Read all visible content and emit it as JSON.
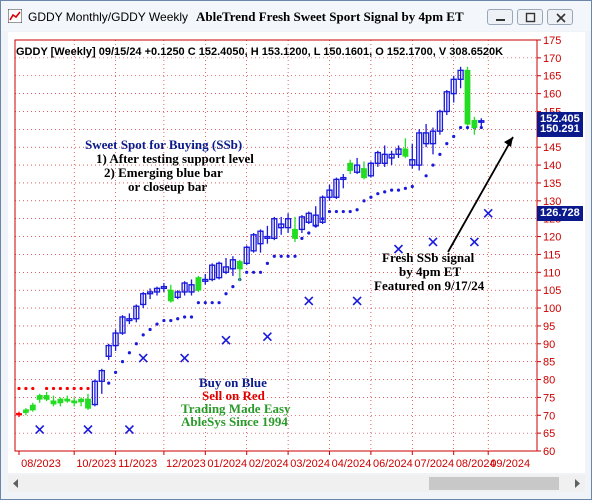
{
  "window": {
    "title": "GDDY Monthly/GDDY Weekly",
    "chart_title": "AbleTrend Fresh Sweet Sport Signal by 4pm ET",
    "controls": [
      "minimize-icon",
      "maximize-icon",
      "close-icon"
    ]
  },
  "header": {
    "text": "GDDY [Weekly] 09/15/24 +0.1250 C 152.4050, H 153.1200, L 150.1601, O 152.1700, V 308.6520K"
  },
  "annotations": {
    "sweet_spot_title": "Sweet Spot for Buying (SSb)",
    "sweet_spot_1": "1) After testing support level",
    "sweet_spot_2": "2) Emerging blue bar",
    "sweet_spot_3": "or closeup bar",
    "fresh_1": "Fresh SSb signal",
    "fresh_2": "by 4pm ET",
    "fresh_3": "Featured on 9/17/24",
    "legend_buy": "Buy on Blue",
    "legend_sell": "Sell on Red",
    "legend_tme": "Trading Made Easy",
    "legend_since": "AbleSys Since 1994"
  },
  "price_tags": {
    "current": "150.291",
    "current_back": "152.405",
    "stop": "126.728"
  },
  "colors": {
    "up_bar": "#1a1adc",
    "neutral_bar": "#22dd22",
    "stop_dots_up": "#1a1adc",
    "stop_dots_down": "#ff0000",
    "axis": "#ff0000",
    "price_tag": "#0a1a8c",
    "note_blue": "#0a1a8c",
    "note_red": "#e00000",
    "note_green": "#2a9a2a"
  },
  "chart_data": {
    "type": "ohlc",
    "x_labels": [
      "08/2023",
      "10/2023",
      "11/2023",
      "12/2023",
      "01/2024",
      "02/2024",
      "03/2024",
      "04/2024",
      "06/2024",
      "07/2024",
      "08/2024",
      "09/2024"
    ],
    "y_ticks": [
      60,
      65,
      70,
      75,
      80,
      85,
      90,
      95,
      100,
      105,
      110,
      115,
      120,
      125,
      130,
      135,
      140,
      145,
      150,
      155,
      160,
      165,
      170,
      175
    ],
    "ylim": [
      60,
      175
    ],
    "grid": true,
    "bars": [
      {
        "o": 70.5,
        "h": 71.0,
        "l": 69.5,
        "c": 70.2,
        "col": "r"
      },
      {
        "o": 70.8,
        "h": 72.0,
        "l": 70.0,
        "c": 71.5,
        "col": "g"
      },
      {
        "o": 71.5,
        "h": 73.5,
        "l": 71.0,
        "c": 72.8,
        "col": "g"
      },
      {
        "o": 74.5,
        "h": 76.0,
        "l": 73.5,
        "c": 75.5,
        "col": "g"
      },
      {
        "o": 75.5,
        "h": 76.5,
        "l": 74.0,
        "c": 74.5,
        "col": "g"
      },
      {
        "o": 74.0,
        "h": 75.5,
        "l": 72.5,
        "c": 73.2,
        "col": "g"
      },
      {
        "o": 73.5,
        "h": 75.0,
        "l": 72.5,
        "c": 74.5,
        "col": "g"
      },
      {
        "o": 74.5,
        "h": 75.5,
        "l": 73.5,
        "c": 74.0,
        "col": "g"
      },
      {
        "o": 74.0,
        "h": 75.0,
        "l": 72.5,
        "c": 73.5,
        "col": "g"
      },
      {
        "o": 73.8,
        "h": 75.0,
        "l": 72.5,
        "c": 74.5,
        "col": "g"
      },
      {
        "o": 74.5,
        "h": 76.0,
        "l": 71.5,
        "c": 72.0,
        "col": "g"
      },
      {
        "o": 73.0,
        "h": 80.0,
        "l": 72.5,
        "c": 79.5,
        "col": "b"
      },
      {
        "o": 79.5,
        "h": 83.0,
        "l": 76.0,
        "c": 82.5,
        "col": "b"
      },
      {
        "o": 86.5,
        "h": 90.0,
        "l": 85.5,
        "c": 89.5,
        "col": "b"
      },
      {
        "o": 89.5,
        "h": 94.0,
        "l": 88.0,
        "c": 93.0,
        "col": "b"
      },
      {
        "o": 93.0,
        "h": 98.0,
        "l": 92.5,
        "c": 97.5,
        "col": "b"
      },
      {
        "o": 96.5,
        "h": 98.5,
        "l": 95.5,
        "c": 97.0,
        "col": "b"
      },
      {
        "o": 97.0,
        "h": 101.0,
        "l": 96.0,
        "c": 100.5,
        "col": "b"
      },
      {
        "o": 101.0,
        "h": 104.5,
        "l": 100.0,
        "c": 104.0,
        "col": "b"
      },
      {
        "o": 104.0,
        "h": 105.5,
        "l": 102.5,
        "c": 104.5,
        "col": "b"
      },
      {
        "o": 104.5,
        "h": 106.0,
        "l": 103.5,
        "c": 105.5,
        "col": "b"
      },
      {
        "o": 105.5,
        "h": 107.0,
        "l": 104.5,
        "c": 106.0,
        "col": "b"
      },
      {
        "o": 105.0,
        "h": 106.5,
        "l": 101.5,
        "c": 102.0,
        "col": "g"
      },
      {
        "o": 103.0,
        "h": 105.0,
        "l": 102.5,
        "c": 104.5,
        "col": "b"
      },
      {
        "o": 104.5,
        "h": 107.5,
        "l": 103.5,
        "c": 107.0,
        "col": "b"
      },
      {
        "o": 106.5,
        "h": 108.0,
        "l": 103.5,
        "c": 104.5,
        "col": "b"
      },
      {
        "o": 105.0,
        "h": 109.0,
        "l": 104.5,
        "c": 108.5,
        "col": "g"
      },
      {
        "o": 108.0,
        "h": 109.5,
        "l": 106.5,
        "c": 107.5,
        "col": "b"
      },
      {
        "o": 108.0,
        "h": 112.5,
        "l": 107.5,
        "c": 112.0,
        "col": "b"
      },
      {
        "o": 108.5,
        "h": 113.0,
        "l": 108.0,
        "c": 112.5,
        "col": "b"
      },
      {
        "o": 110.0,
        "h": 114.0,
        "l": 109.5,
        "c": 111.5,
        "col": "b"
      },
      {
        "o": 111.0,
        "h": 114.5,
        "l": 109.0,
        "c": 113.5,
        "col": "b"
      },
      {
        "o": 113.0,
        "h": 113.5,
        "l": 107.5,
        "c": 111.0,
        "col": "g"
      },
      {
        "o": 112.5,
        "h": 117.5,
        "l": 112.0,
        "c": 117.0,
        "col": "b"
      },
      {
        "o": 116.0,
        "h": 121.0,
        "l": 115.5,
        "c": 120.5,
        "col": "b"
      },
      {
        "o": 118.0,
        "h": 122.0,
        "l": 115.5,
        "c": 121.5,
        "col": "b"
      },
      {
        "o": 120.0,
        "h": 123.0,
        "l": 118.0,
        "c": 119.5,
        "col": "b"
      },
      {
        "o": 119.5,
        "h": 125.5,
        "l": 119.0,
        "c": 125.0,
        "col": "b"
      },
      {
        "o": 122.5,
        "h": 125.5,
        "l": 120.5,
        "c": 123.5,
        "col": "b"
      },
      {
        "o": 125.0,
        "h": 126.5,
        "l": 121.0,
        "c": 122.5,
        "col": "b"
      },
      {
        "o": 122.0,
        "h": 125.5,
        "l": 118.5,
        "c": 119.5,
        "col": "g"
      },
      {
        "o": 122.0,
        "h": 126.0,
        "l": 121.0,
        "c": 125.5,
        "col": "b"
      },
      {
        "o": 124.0,
        "h": 127.0,
        "l": 123.5,
        "c": 126.5,
        "col": "b"
      },
      {
        "o": 126.0,
        "h": 128.5,
        "l": 122.5,
        "c": 123.0,
        "col": "b"
      },
      {
        "o": 124.0,
        "h": 131.5,
        "l": 123.5,
        "c": 131.0,
        "col": "b"
      },
      {
        "o": 131.0,
        "h": 134.5,
        "l": 130.0,
        "c": 133.0,
        "col": "b"
      },
      {
        "o": 131.0,
        "h": 136.5,
        "l": 130.5,
        "c": 136.0,
        "col": "b"
      },
      {
        "o": 136.0,
        "h": 137.5,
        "l": 133.5,
        "c": 136.5,
        "col": "b"
      },
      {
        "o": 138.5,
        "h": 141.5,
        "l": 137.5,
        "c": 140.5,
        "col": "g"
      },
      {
        "o": 140.0,
        "h": 142.0,
        "l": 137.5,
        "c": 138.0,
        "col": "b"
      },
      {
        "o": 139.0,
        "h": 141.0,
        "l": 136.0,
        "c": 136.5,
        "col": "g"
      },
      {
        "o": 137.0,
        "h": 141.0,
        "l": 136.5,
        "c": 140.5,
        "col": "b"
      },
      {
        "o": 140.5,
        "h": 144.0,
        "l": 139.5,
        "c": 143.5,
        "col": "b"
      },
      {
        "o": 143.0,
        "h": 145.5,
        "l": 139.5,
        "c": 140.5,
        "col": "b"
      },
      {
        "o": 142.0,
        "h": 144.0,
        "l": 140.0,
        "c": 143.0,
        "col": "b"
      },
      {
        "o": 143.0,
        "h": 145.5,
        "l": 142.0,
        "c": 144.5,
        "col": "b"
      },
      {
        "o": 144.5,
        "h": 147.5,
        "l": 142.0,
        "c": 142.5,
        "col": "g"
      },
      {
        "o": 141.5,
        "h": 146.0,
        "l": 139.0,
        "c": 140.0,
        "col": "b"
      },
      {
        "o": 140.0,
        "h": 150.0,
        "l": 138.5,
        "c": 149.0,
        "col": "b"
      },
      {
        "o": 149.0,
        "h": 151.5,
        "l": 145.0,
        "c": 146.0,
        "col": "b"
      },
      {
        "o": 146.0,
        "h": 150.5,
        "l": 143.0,
        "c": 149.5,
        "col": "b"
      },
      {
        "o": 149.5,
        "h": 155.5,
        "l": 148.5,
        "c": 155.0,
        "col": "b"
      },
      {
        "o": 155.0,
        "h": 161.0,
        "l": 154.0,
        "c": 160.5,
        "col": "b"
      },
      {
        "o": 160.0,
        "h": 165.0,
        "l": 157.5,
        "c": 164.0,
        "col": "b"
      },
      {
        "o": 164.0,
        "h": 167.5,
        "l": 161.5,
        "c": 166.5,
        "col": "b"
      },
      {
        "o": 166.5,
        "h": 167.5,
        "l": 151.0,
        "c": 151.5,
        "col": "g"
      },
      {
        "o": 150.5,
        "h": 153.5,
        "l": 148.5,
        "c": 152.5,
        "col": "g"
      },
      {
        "o": 152.2,
        "h": 153.1,
        "l": 150.2,
        "c": 152.4,
        "col": "b"
      }
    ],
    "stops": [
      {
        "i": 0,
        "v": 77.5,
        "col": "r"
      },
      {
        "i": 1,
        "v": 77.5,
        "col": "r"
      },
      {
        "i": 2,
        "v": 77.5,
        "col": "r"
      },
      {
        "i": 4,
        "v": 77.5,
        "col": "r"
      },
      {
        "i": 5,
        "v": 77.5,
        "col": "r"
      },
      {
        "i": 6,
        "v": 77.5,
        "col": "r"
      },
      {
        "i": 7,
        "v": 77.5,
        "col": "r"
      },
      {
        "i": 8,
        "v": 77.5,
        "col": "r"
      },
      {
        "i": 9,
        "v": 77.5,
        "col": "r"
      },
      {
        "i": 10,
        "v": 77.5,
        "col": "r"
      },
      {
        "i": 13,
        "v": 79.0,
        "col": "b"
      },
      {
        "i": 14,
        "v": 82.0,
        "col": "b"
      },
      {
        "i": 15,
        "v": 85.0,
        "col": "b"
      },
      {
        "i": 16,
        "v": 87.5,
        "col": "b"
      },
      {
        "i": 17,
        "v": 90.0,
        "col": "b"
      },
      {
        "i": 18,
        "v": 92.5,
        "col": "b"
      },
      {
        "i": 19,
        "v": 94.0,
        "col": "b"
      },
      {
        "i": 20,
        "v": 95.5,
        "col": "b"
      },
      {
        "i": 21,
        "v": 96.5,
        "col": "b"
      },
      {
        "i": 22,
        "v": 96.5,
        "col": "b"
      },
      {
        "i": 23,
        "v": 97.0,
        "col": "b"
      },
      {
        "i": 24,
        "v": 97.5,
        "col": "b"
      },
      {
        "i": 25,
        "v": 97.5,
        "col": "b"
      },
      {
        "i": 26,
        "v": 101.5,
        "col": "b"
      },
      {
        "i": 27,
        "v": 101.5,
        "col": "b"
      },
      {
        "i": 28,
        "v": 101.5,
        "col": "b"
      },
      {
        "i": 29,
        "v": 101.5,
        "col": "b"
      },
      {
        "i": 30,
        "v": 104.0,
        "col": "b"
      },
      {
        "i": 31,
        "v": 106.0,
        "col": "b"
      },
      {
        "i": 32,
        "v": 108.0,
        "col": "b"
      },
      {
        "i": 33,
        "v": 110.0,
        "col": "b"
      },
      {
        "i": 34,
        "v": 110.0,
        "col": "b"
      },
      {
        "i": 35,
        "v": 110.0,
        "col": "b"
      },
      {
        "i": 36,
        "v": 112.5,
        "col": "b"
      },
      {
        "i": 37,
        "v": 114.5,
        "col": "b"
      },
      {
        "i": 38,
        "v": 114.5,
        "col": "b"
      },
      {
        "i": 39,
        "v": 114.5,
        "col": "b"
      },
      {
        "i": 40,
        "v": 114.5,
        "col": "b"
      },
      {
        "i": 41,
        "v": 119.5,
        "col": "b"
      },
      {
        "i": 42,
        "v": 121.0,
        "col": "b"
      },
      {
        "i": 43,
        "v": 123.0,
        "col": "b"
      },
      {
        "i": 44,
        "v": 125.0,
        "col": "b"
      },
      {
        "i": 45,
        "v": 127.0,
        "col": "b"
      },
      {
        "i": 46,
        "v": 127.0,
        "col": "b"
      },
      {
        "i": 47,
        "v": 127.0,
        "col": "b"
      },
      {
        "i": 48,
        "v": 127.0,
        "col": "b"
      },
      {
        "i": 49,
        "v": 127.5,
        "col": "b"
      },
      {
        "i": 50,
        "v": 130.0,
        "col": "b"
      },
      {
        "i": 51,
        "v": 131.0,
        "col": "b"
      },
      {
        "i": 52,
        "v": 132.0,
        "col": "b"
      },
      {
        "i": 53,
        "v": 132.5,
        "col": "b"
      },
      {
        "i": 54,
        "v": 133.0,
        "col": "b"
      },
      {
        "i": 55,
        "v": 133.0,
        "col": "b"
      },
      {
        "i": 56,
        "v": 133.5,
        "col": "b"
      },
      {
        "i": 57,
        "v": 134.0,
        "col": "b"
      },
      {
        "i": 59,
        "v": 137.0,
        "col": "b"
      },
      {
        "i": 60,
        "v": 140.0,
        "col": "b"
      },
      {
        "i": 61,
        "v": 143.0,
        "col": "b"
      },
      {
        "i": 62,
        "v": 146.0,
        "col": "b"
      },
      {
        "i": 63,
        "v": 148.0,
        "col": "b"
      },
      {
        "i": 64,
        "v": 150.5,
        "col": "b"
      },
      {
        "i": 65,
        "v": 150.5,
        "col": "b"
      },
      {
        "i": 66,
        "v": 150.5,
        "col": "b"
      },
      {
        "i": 67,
        "v": 150.5,
        "col": "b"
      }
    ],
    "crosses": [
      {
        "i": 3,
        "v": 66.0
      },
      {
        "i": 10,
        "v": 66.0
      },
      {
        "i": 16,
        "v": 66.0
      },
      {
        "i": 18,
        "v": 86.0
      },
      {
        "i": 24,
        "v": 86.0
      },
      {
        "i": 30,
        "v": 91.0
      },
      {
        "i": 36,
        "v": 92.0
      },
      {
        "i": 42,
        "v": 102.0
      },
      {
        "i": 49,
        "v": 102.0
      },
      {
        "i": 55,
        "v": 116.5
      },
      {
        "i": 60,
        "v": 118.5
      },
      {
        "i": 66,
        "v": 118.5
      },
      {
        "i": 68,
        "v": 126.5
      }
    ]
  }
}
